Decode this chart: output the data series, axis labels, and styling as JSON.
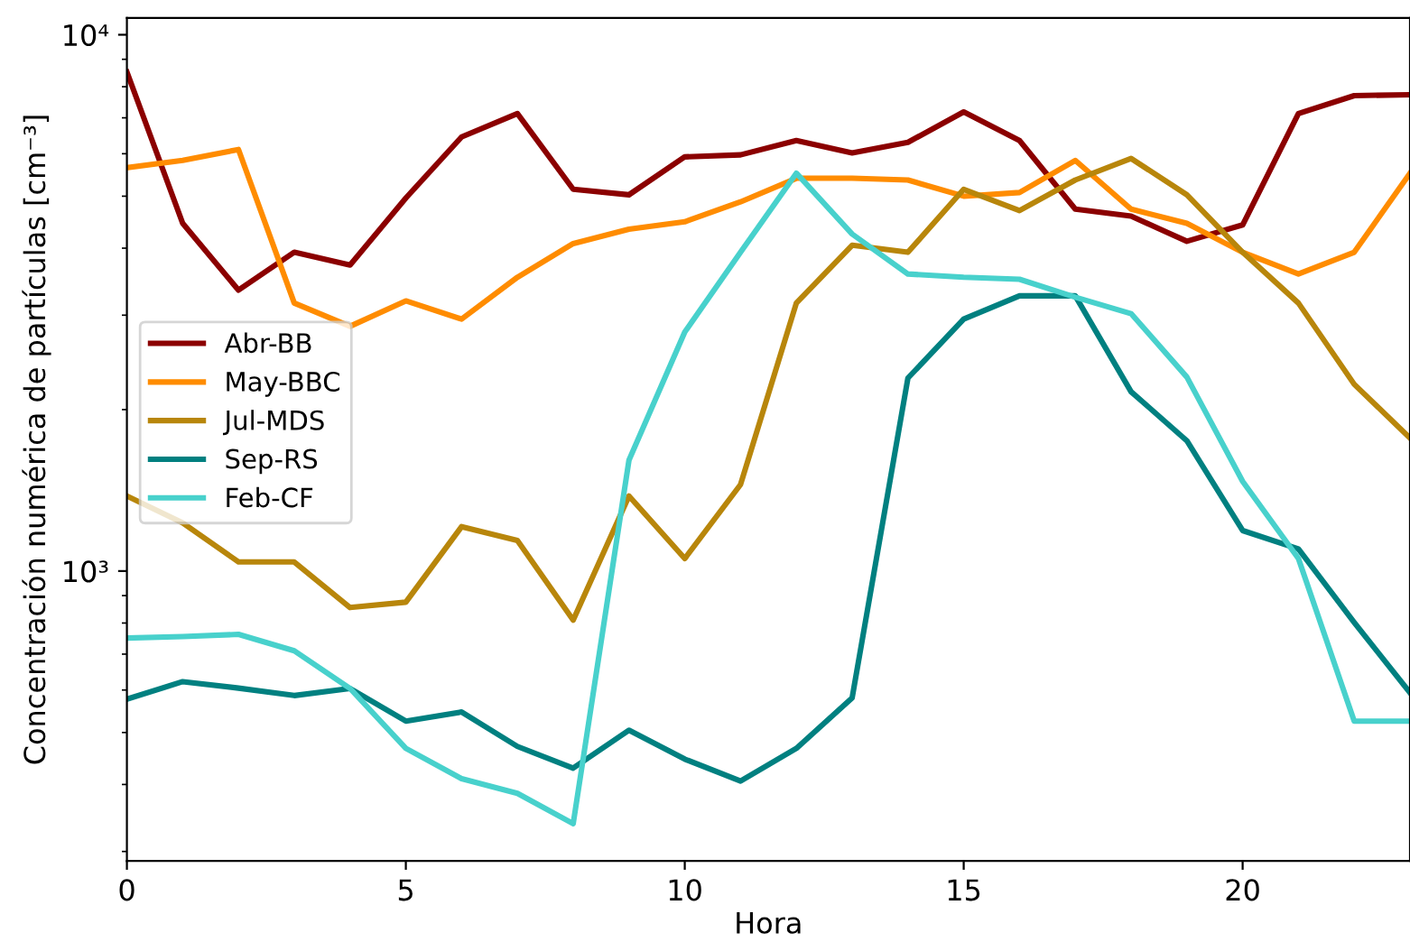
{
  "chart_data": {
    "type": "line",
    "xlabel": "Hora",
    "ylabel": "Concentración numérica de partículas [cm⁻³]",
    "x": [
      0,
      1,
      2,
      3,
      4,
      5,
      6,
      7,
      8,
      9,
      10,
      11,
      12,
      13,
      14,
      15,
      16,
      17,
      18,
      19,
      20,
      21,
      22,
      23
    ],
    "series": [
      {
        "name": "Abr-BB",
        "color": "#8b0000",
        "values": [
          8520,
          4450,
          3340,
          3930,
          3720,
          4960,
          6450,
          7130,
          5150,
          5030,
          5920,
          5970,
          6350,
          6020,
          6300,
          7180,
          6350,
          4730,
          4590,
          4120,
          4420,
          7130,
          7700,
          7730
        ]
      },
      {
        "name": "May-BBC",
        "color": "#ff8c00",
        "values": [
          5650,
          5830,
          6110,
          3160,
          2860,
          3190,
          2950,
          3530,
          4080,
          4340,
          4480,
          4880,
          5400,
          5400,
          5360,
          5000,
          5080,
          5830,
          4730,
          4450,
          3930,
          3580,
          3930,
          5520
        ]
      },
      {
        "name": "Jul-MDS",
        "color": "#b8860b",
        "values": [
          1380,
          1230,
          1040,
          1040,
          855,
          875,
          1210,
          1140,
          810,
          1380,
          1055,
          1450,
          3160,
          4050,
          3930,
          5150,
          4700,
          5360,
          5880,
          5030,
          3930,
          3160,
          2230,
          1770
        ]
      },
      {
        "name": "Sep-RS",
        "color": "#008080",
        "values": [
          577,
          622,
          605,
          586,
          604,
          525,
          546,
          471,
          429,
          505,
          446,
          406,
          467,
          580,
          2290,
          2950,
          3260,
          3260,
          2160,
          1750,
          1190,
          1100,
          802,
          593
        ]
      },
      {
        "name": "Feb-CF",
        "color": "#48d1cc",
        "values": [
          750,
          755,
          762,
          710,
          604,
          467,
          410,
          385,
          338,
          1610,
          2790,
          3930,
          5520,
          4250,
          3580,
          3530,
          3500,
          3240,
          3020,
          2300,
          1470,
          1055,
          525,
          525
        ]
      }
    ],
    "log": "y",
    "xlim": [
      0,
      23
    ],
    "xticks": [
      0,
      5,
      10,
      15,
      20
    ],
    "ylim": [
      288,
      10750
    ],
    "yticks": [
      {
        "value": 1000,
        "label": "10³"
      },
      {
        "value": 10000,
        "label": "10⁴"
      }
    ],
    "legend": "center left",
    "grid": false
  }
}
